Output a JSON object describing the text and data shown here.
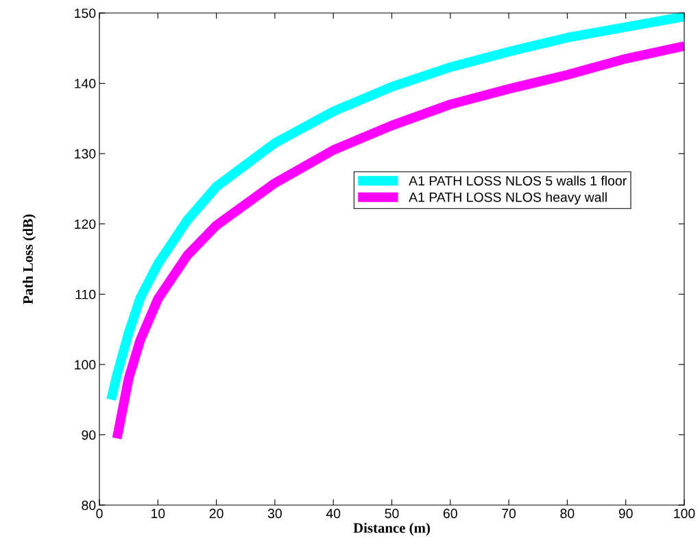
{
  "chart_data": {
    "type": "line",
    "xlabel": "Distance (m)",
    "ylabel": "Path Loss (dB)",
    "xlim": [
      0,
      100
    ],
    "ylim": [
      80,
      150
    ],
    "xticks": [
      0,
      10,
      20,
      30,
      40,
      50,
      60,
      70,
      80,
      90,
      100
    ],
    "yticks": [
      80,
      90,
      100,
      110,
      120,
      130,
      140,
      150
    ],
    "grid": false,
    "legend": "right",
    "marker": "none",
    "line_style": "solid",
    "series": [
      {
        "name": "A1 PATH LOSS NLOS 5 walls 1 floor",
        "color": "#00ffff",
        "x": [
          2,
          3,
          5,
          7,
          10,
          15,
          20,
          30,
          40,
          50,
          60,
          70,
          80,
          90,
          100
        ],
        "values": [
          95,
          98.5,
          104.5,
          109.5,
          114.3,
          120.5,
          125.3,
          131.5,
          136,
          139.5,
          142.3,
          144.5,
          146.5,
          148,
          149.5
        ]
      },
      {
        "name": "A1 PATH LOSS NLOS heavy wall",
        "color": "#ff00ff",
        "x": [
          3,
          5,
          7,
          10,
          15,
          20,
          30,
          40,
          50,
          60,
          70,
          80,
          90,
          100
        ],
        "values": [
          89.5,
          98,
          103.5,
          109.3,
          115.5,
          119.8,
          125.8,
          130.5,
          134,
          137,
          139.2,
          141.2,
          143.5,
          145.3
        ]
      }
    ]
  }
}
